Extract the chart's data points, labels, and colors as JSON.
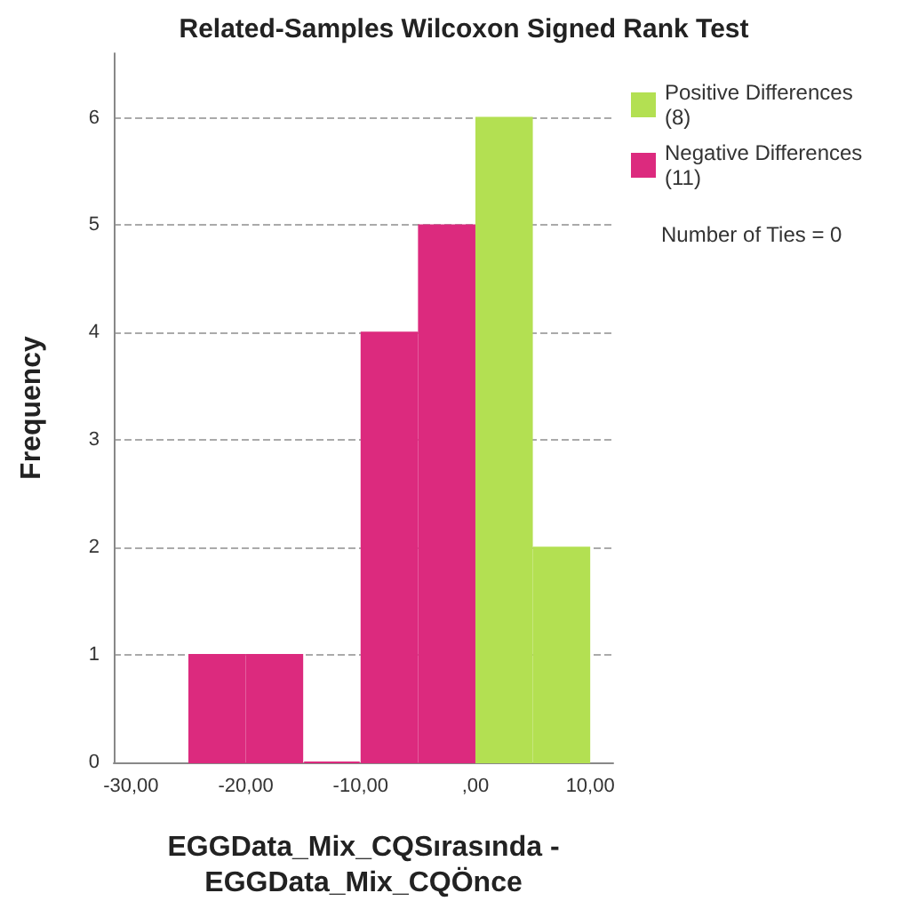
{
  "chart_data": {
    "type": "histogram",
    "title": "Related-Samples Wilcoxon Signed Rank Test",
    "xlabel": "EGGData_Mix_CQSırasında -\nEGGData_Mix_CQÖnce",
    "ylabel": "Frequency",
    "bins": [
      -25,
      -20,
      -15,
      -10,
      -5,
      0,
      5,
      10
    ],
    "series": [
      {
        "name": "Positive Differences\n(8)",
        "color": "#b3e052",
        "values": [
          null,
          null,
          null,
          null,
          null,
          6,
          2
        ]
      },
      {
        "name": "Negative Differences\n(11)",
        "color": "#dc2a7e",
        "values": [
          1,
          1,
          0,
          4,
          5,
          null,
          null
        ]
      }
    ],
    "xlim": [
      -31.5,
      12
    ],
    "xticks": [
      {
        "value": -30,
        "label": "-30,00"
      },
      {
        "value": -20,
        "label": "-20,00"
      },
      {
        "value": -10,
        "label": "-10,00"
      },
      {
        "value": 0,
        "label": ",00"
      },
      {
        "value": 10,
        "label": "10,00"
      }
    ],
    "ylim": [
      0,
      6.6
    ],
    "yticks": [
      0,
      1,
      2,
      3,
      4,
      5,
      6
    ],
    "grid": "y",
    "legend": "top right",
    "annotations": [
      "Number of Ties = 0"
    ]
  }
}
